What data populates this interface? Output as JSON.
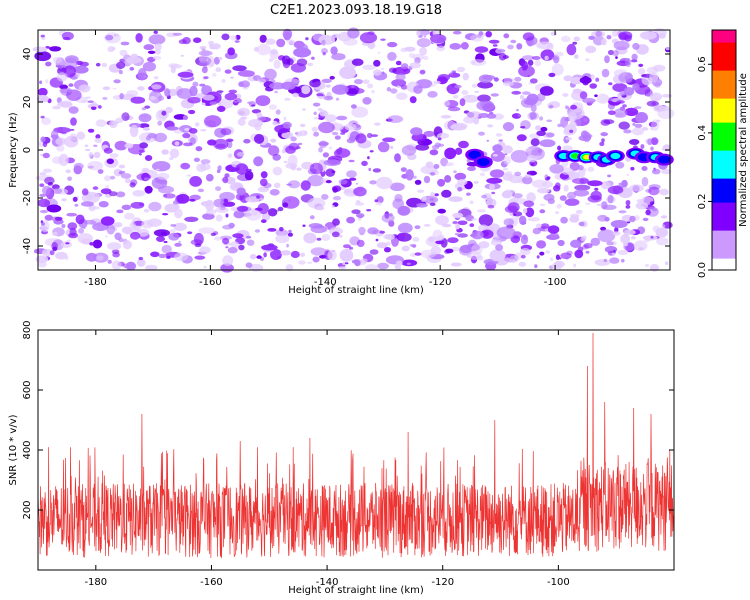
{
  "title": "C2E1.2023.093.18.19.G18",
  "chart_data": [
    {
      "type": "heatmap",
      "xlabel": "Height of straight line (km)",
      "ylabel": "Frequency (Hz)",
      "xlim": [
        -190,
        -80
      ],
      "ylim": [
        -50,
        50
      ],
      "xticks": [
        -180,
        -160,
        -140,
        -120,
        -100
      ],
      "yticks": [
        -40,
        -20,
        0,
        20,
        40
      ],
      "colorbar": {
        "label": "Normalized spectral amplitude",
        "range": [
          0,
          0.7
        ],
        "ticks": [
          "0.0",
          "0.2",
          "0.4",
          "0.6"
        ],
        "colormap": [
          "#ffffff",
          "#cc99ff",
          "#8000ff",
          "#0000ff",
          "#00ffff",
          "#00ff00",
          "#ffff00",
          "#ff8000",
          "#ff0000",
          "#ff0080"
        ]
      },
      "background_level": 0.07,
      "hotspots": [
        {
          "x": -114,
          "y": -2,
          "amplitude": 0.2
        },
        {
          "x": -112.5,
          "y": -5,
          "amplitude": 0.24
        },
        {
          "x": -98.5,
          "y": -2.5,
          "amplitude": 0.32
        },
        {
          "x": -96.5,
          "y": -2.5,
          "amplitude": 0.36
        },
        {
          "x": -94.5,
          "y": -3,
          "amplitude": 0.55
        },
        {
          "x": -92.5,
          "y": -3,
          "amplitude": 0.3
        },
        {
          "x": -91,
          "y": -4,
          "amplitude": 0.35
        },
        {
          "x": -89.5,
          "y": -2.5,
          "amplitude": 0.3
        },
        {
          "x": -86,
          "y": -1.5,
          "amplitude": 0.32
        },
        {
          "x": -84.5,
          "y": -3,
          "amplitude": 0.26
        },
        {
          "x": -82.5,
          "y": -3,
          "amplitude": 0.3
        },
        {
          "x": -81,
          "y": -4,
          "amplitude": 0.24
        }
      ]
    },
    {
      "type": "line",
      "xlabel": "Height of straight line (km)",
      "ylabel": "SNR (10 * v/v)",
      "xlim": [
        -190,
        -80
      ],
      "ylim": [
        0,
        800
      ],
      "xticks": [
        -180,
        -160,
        -140,
        -120,
        -100
      ],
      "yticks": [
        200,
        400,
        600,
        800
      ],
      "color": "#ee3333",
      "series": [
        {
          "baseline_min": 40,
          "baseline_max": 290,
          "peaks": [
            {
              "x": -172,
              "y": 520
            },
            {
              "x": -155,
              "y": 430
            },
            {
              "x": -143,
              "y": 440
            },
            {
              "x": -126,
              "y": 460
            },
            {
              "x": -111,
              "y": 500
            },
            {
              "x": -95,
              "y": 680
            },
            {
              "x": -94,
              "y": 790
            },
            {
              "x": -92,
              "y": 560
            },
            {
              "x": -87,
              "y": 540
            },
            {
              "x": -84,
              "y": 520
            }
          ]
        }
      ]
    }
  ]
}
